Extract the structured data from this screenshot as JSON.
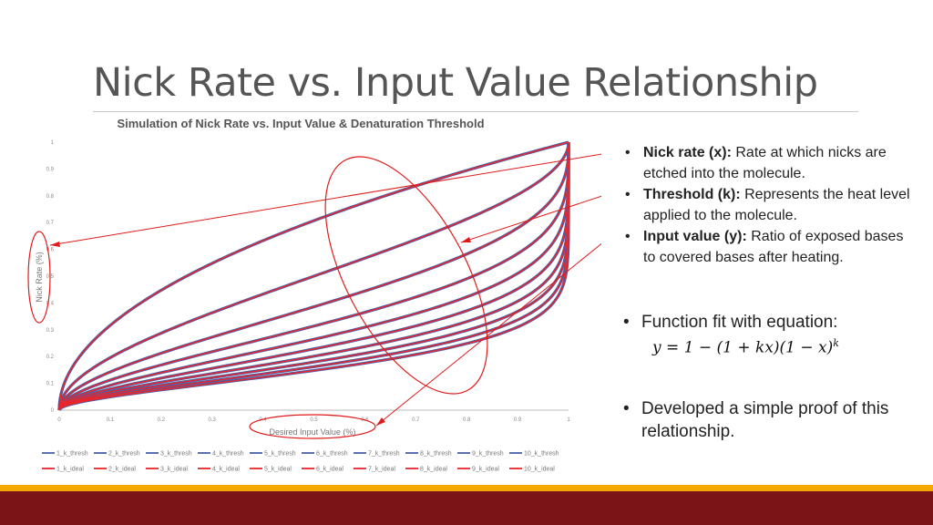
{
  "slide": {
    "title": "Nick Rate vs. Input Value Relationship",
    "definitions": [
      {
        "term": "Nick rate (x):",
        "text": "Rate at which nicks are etched into the molecule."
      },
      {
        "term": "Threshold (k):",
        "text": "Represents the heat level applied to the molecule."
      },
      {
        "term": "Input value (y):",
        "text": "Ratio of exposed bases to covered bases after heating."
      }
    ],
    "points": [
      "Function fit with equation:",
      "Developed a simple proof of this relationship."
    ],
    "equation": {
      "main": "y = 1 − (1 + kx)(1 − x)",
      "exponent": "k"
    }
  },
  "colors": {
    "title": "#555555",
    "thresh_series": "#4a5fa8",
    "ideal_series": "#e8262b",
    "annotation": "#e01b1b",
    "band_gold": "#f3a800",
    "band_maroon": "#7b1416"
  },
  "chart_data": {
    "type": "line",
    "title": "Simulation of Nick Rate vs. Input Value & Denaturation Threshold",
    "xlabel": "Desired Input Value (%)",
    "ylabel": "Nick Rate (%)",
    "xlim": [
      0,
      1
    ],
    "ylim": [
      0,
      1
    ],
    "x_ticks": [
      "0",
      "0.1",
      "0.2",
      "0.3",
      "0.4",
      "0.5",
      "0.6",
      "0.7",
      "0.8",
      "0.9",
      "1"
    ],
    "y_ticks": [
      "0",
      "0.1",
      "0.2",
      "0.3",
      "0.4",
      "0.5",
      "0.6",
      "0.7",
      "0.8",
      "0.9",
      "1"
    ],
    "grid": false,
    "legend_position": "bottom",
    "k_values": [
      1,
      2,
      3,
      4,
      5,
      6,
      7,
      8,
      9,
      10
    ],
    "relationship": "y = 1 - (1 + kx)(1 - x)^k",
    "series": [
      {
        "name": "1_k_thresh",
        "kind": "thresh",
        "k": 1
      },
      {
        "name": "2_k_thresh",
        "kind": "thresh",
        "k": 2
      },
      {
        "name": "3_k_thresh",
        "kind": "thresh",
        "k": 3
      },
      {
        "name": "4_k_thresh",
        "kind": "thresh",
        "k": 4
      },
      {
        "name": "5_k_thresh",
        "kind": "thresh",
        "k": 5
      },
      {
        "name": "6_k_thresh",
        "kind": "thresh",
        "k": 6
      },
      {
        "name": "7_k_thresh",
        "kind": "thresh",
        "k": 7
      },
      {
        "name": "8_k_thresh",
        "kind": "thresh",
        "k": 8
      },
      {
        "name": "9_k_thresh",
        "kind": "thresh",
        "k": 9
      },
      {
        "name": "10_k_thresh",
        "kind": "thresh",
        "k": 10
      },
      {
        "name": "1_k_ideal",
        "kind": "ideal",
        "k": 1
      },
      {
        "name": "2_k_ideal",
        "kind": "ideal",
        "k": 2
      },
      {
        "name": "3_k_ideal",
        "kind": "ideal",
        "k": 3
      },
      {
        "name": "4_k_ideal",
        "kind": "ideal",
        "k": 4
      },
      {
        "name": "5_k_ideal",
        "kind": "ideal",
        "k": 5
      },
      {
        "name": "6_k_ideal",
        "kind": "ideal",
        "k": 6
      },
      {
        "name": "7_k_ideal",
        "kind": "ideal",
        "k": 7
      },
      {
        "name": "8_k_ideal",
        "kind": "ideal",
        "k": 8
      },
      {
        "name": "9_k_ideal",
        "kind": "ideal",
        "k": 9
      },
      {
        "name": "10_k_ideal",
        "kind": "ideal",
        "k": 10
      }
    ]
  }
}
